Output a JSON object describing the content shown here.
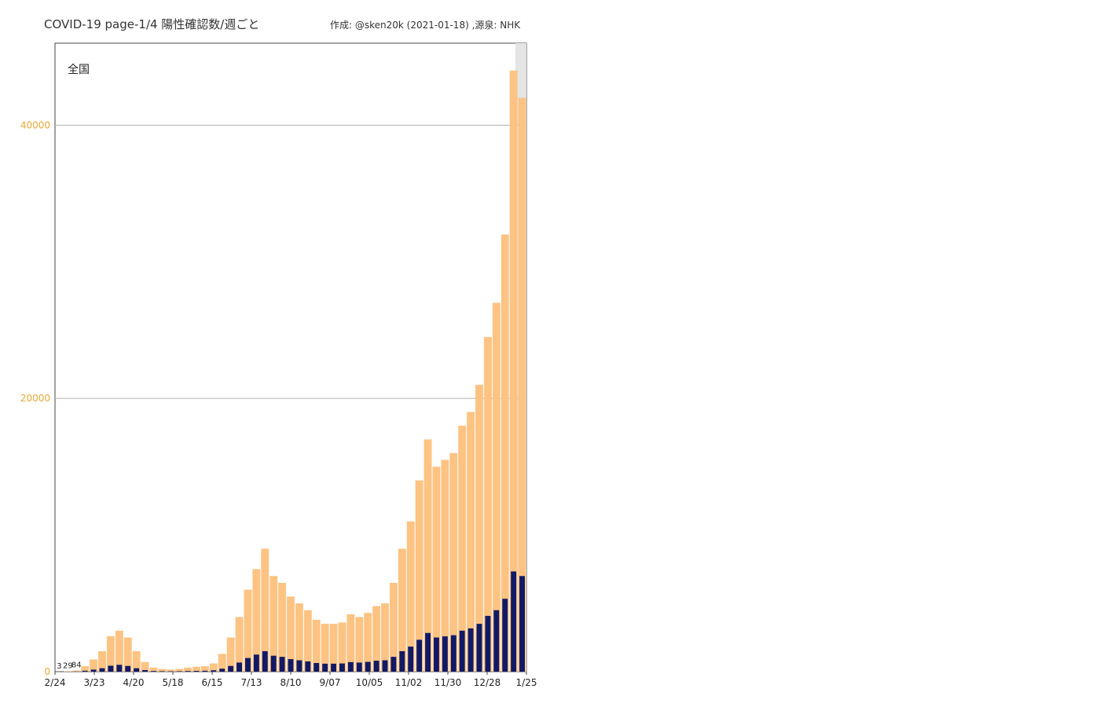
{
  "header": {
    "title": "COVID-19 page-1/4  陽性確認数/週ごと",
    "credit": "作成: @sken20k (2021-01-18) ,源泉: NHK"
  },
  "chart_data": {
    "type": "bar",
    "region": "全国",
    "x_ticks": [
      "2/24",
      "3/23",
      "4/20",
      "5/18",
      "6/15",
      "7/13",
      "8/10",
      "9/07",
      "10/05",
      "11/02",
      "11/30",
      "12/28",
      "1/25"
    ],
    "y_ticks": [
      0,
      20000,
      40000
    ],
    "ylim": [
      0,
      46000
    ],
    "weekly_totals": [
      3,
      29,
      84,
      400,
      900,
      1500,
      2600,
      3000,
      2500,
      1500,
      700,
      300,
      200,
      150,
      200,
      300,
      350,
      400,
      600,
      1300,
      2500,
      4000,
      6000,
      7500,
      9000,
      7000,
      6500,
      5500,
      5000,
      4500,
      3800,
      3500,
      3500,
      3600,
      4200,
      4000,
      4300,
      4800,
      5000,
      6500,
      9000,
      11000,
      14000,
      17000,
      15000,
      15500,
      16000,
      18000,
      19000,
      21000,
      24500,
      27000,
      32000,
      44000,
      42000
    ],
    "labels": {
      "0": "3",
      "1": "29",
      "2": "84"
    },
    "colors": {
      "weekly": "#fdc383",
      "daily": "#111a66",
      "projection": "#e4e4e4",
      "axis": "#e8a735"
    }
  }
}
